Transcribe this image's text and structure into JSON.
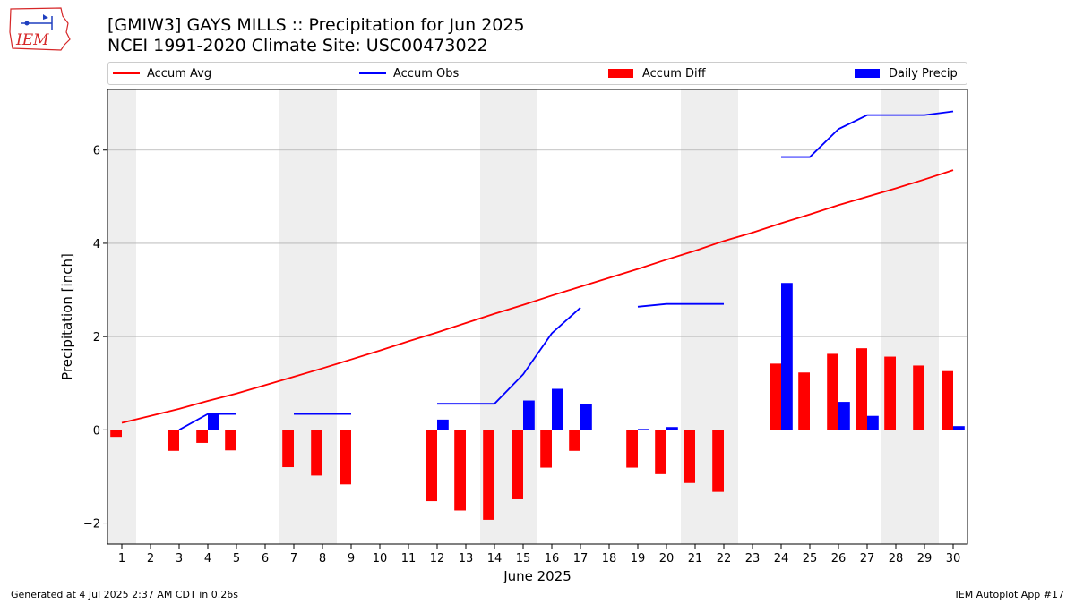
{
  "logo": {
    "text": "IEM",
    "color": "#d62728"
  },
  "title": {
    "line1": "[GMIW3] GAYS MILLS :: Precipitation for Jun 2025",
    "line2": "NCEI 1991-2020 Climate Site: USC00473022"
  },
  "footer": {
    "left": "Generated at 4 Jul 2025 2:37 AM CDT in 0.26s",
    "right": "IEM Autoplot App #17"
  },
  "legend": {
    "accum_avg": "Accum Avg",
    "accum_obs": "Accum Obs",
    "accum_diff": "Accum Diff",
    "daily_precip": "Daily Precip"
  },
  "chart_data": {
    "type": "bar",
    "xlabel": "June 2025",
    "ylabel": "Precipitation [inch]",
    "ylim": [
      -2.45,
      7.3
    ],
    "yticks": [
      -2,
      0,
      2,
      4,
      6
    ],
    "xlim": [
      0.5,
      30.5
    ],
    "x": [
      1,
      2,
      3,
      4,
      5,
      6,
      7,
      8,
      9,
      10,
      11,
      12,
      13,
      14,
      15,
      16,
      17,
      18,
      19,
      20,
      21,
      22,
      23,
      24,
      25,
      26,
      27,
      28,
      29,
      30
    ],
    "weekend_shading": [
      [
        0.5,
        1.5
      ],
      [
        6.5,
        8.5
      ],
      [
        13.5,
        15.5
      ],
      [
        20.5,
        22.5
      ],
      [
        27.5,
        29.5
      ]
    ],
    "grid": "y",
    "legend_position": "top",
    "colors": {
      "accum_avg": "#ff0000",
      "accum_obs": "#0000ff",
      "accum_diff": "#ff0000",
      "daily_precip": "#0000ff",
      "shade": "#eeeeee",
      "grid": "#b0b0b0"
    },
    "series": [
      {
        "name": "Accum Avg",
        "type": "line",
        "values": [
          0.15,
          0.3,
          0.45,
          0.62,
          0.78,
          0.96,
          1.14,
          1.32,
          1.51,
          1.7,
          1.9,
          2.09,
          2.29,
          2.49,
          2.68,
          2.88,
          3.07,
          3.26,
          3.45,
          3.65,
          3.84,
          4.05,
          4.23,
          4.43,
          4.62,
          4.82,
          5.0,
          5.18,
          5.37,
          5.57
        ]
      },
      {
        "name": "Accum Obs",
        "type": "line",
        "values": [
          null,
          null,
          0.0,
          0.34,
          0.34,
          null,
          0.34,
          0.34,
          0.34,
          null,
          null,
          0.56,
          0.56,
          0.56,
          1.19,
          2.07,
          2.62,
          null,
          2.64,
          2.7,
          2.7,
          2.7,
          null,
          5.85,
          5.85,
          6.45,
          6.75,
          6.75,
          6.75,
          6.83
        ]
      },
      {
        "name": "Accum Diff",
        "type": "bar",
        "values": [
          -0.15,
          null,
          -0.45,
          -0.28,
          -0.44,
          null,
          -0.8,
          -0.98,
          -1.17,
          null,
          null,
          -1.53,
          -1.73,
          -1.93,
          -1.49,
          -0.81,
          -0.45,
          null,
          -0.81,
          -0.95,
          -1.14,
          -1.33,
          null,
          1.42,
          1.23,
          1.63,
          1.75,
          1.57,
          1.38,
          1.26
        ]
      },
      {
        "name": "Daily Precip",
        "type": "bar",
        "values": [
          0,
          0,
          0,
          0.34,
          0,
          0,
          0,
          0,
          0,
          0,
          0,
          0.22,
          0,
          0,
          0.63,
          0.88,
          0.55,
          0,
          0.02,
          0.06,
          0,
          0,
          0,
          3.15,
          0,
          0.6,
          0.3,
          0,
          0,
          0.08
        ]
      }
    ]
  }
}
